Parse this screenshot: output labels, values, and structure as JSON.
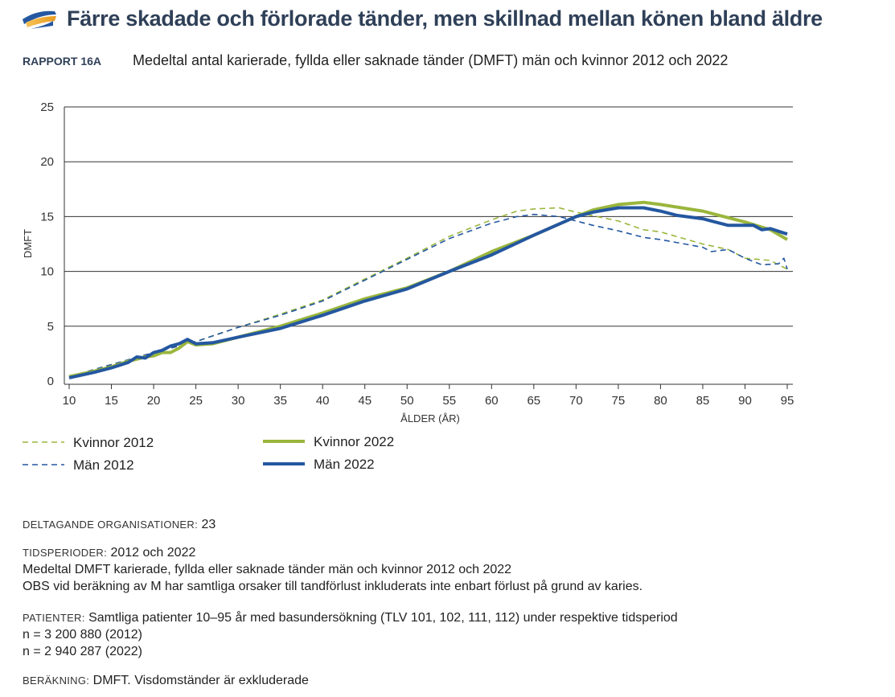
{
  "header": {
    "title": "Färre skadade och förlorade tänder, men skillnad mellan könen bland äldre",
    "report_label": "RAPPORT 16A",
    "subtitle": "Medeltal antal karierade, fyllda eller saknade tänder (DMFT) män och kvinnor 2012 och 2022"
  },
  "colors": {
    "green": "#9ab63c",
    "blue": "#2457a0",
    "title": "#2f4058"
  },
  "chart_data": {
    "type": "line",
    "xlabel": "ÅLDER (ÅR)",
    "ylabel": "DMFT",
    "xlim": [
      10,
      96
    ],
    "ylim": [
      0,
      25
    ],
    "xticks": [
      10,
      15,
      20,
      25,
      30,
      35,
      40,
      45,
      50,
      55,
      60,
      65,
      70,
      75,
      80,
      85,
      90,
      95
    ],
    "yticks": [
      0,
      5,
      10,
      15,
      20,
      25
    ],
    "grid": "horizontal",
    "legend": "bottom-left",
    "series": [
      {
        "name": "Kvinnor 2012",
        "style": "dashed",
        "color": "#9ab63c",
        "x": [
          10,
          15,
          20,
          25,
          30,
          35,
          40,
          45,
          50,
          55,
          60,
          63,
          65,
          68,
          70,
          75,
          78,
          80,
          85,
          88,
          90,
          93,
          95
        ],
        "y": [
          0.4,
          1.5,
          2.6,
          3.6,
          4.9,
          6.1,
          7.4,
          9.3,
          11.2,
          13.2,
          14.7,
          15.5,
          15.7,
          15.8,
          15.4,
          14.6,
          13.8,
          13.6,
          12.5,
          12.0,
          11.2,
          11.0,
          10.2
        ]
      },
      {
        "name": "Män 2012",
        "style": "dashed",
        "color": "#2457a0",
        "x": [
          10,
          15,
          20,
          25,
          30,
          35,
          40,
          45,
          50,
          55,
          60,
          63,
          65,
          68,
          70,
          72,
          75,
          78,
          80,
          85,
          86,
          88,
          90,
          92,
          94,
          94.6,
          95
        ],
        "y": [
          0.4,
          1.5,
          2.6,
          3.6,
          4.9,
          6.0,
          7.3,
          9.2,
          11.1,
          13.0,
          14.4,
          15.0,
          15.2,
          15.0,
          14.6,
          14.2,
          13.7,
          13.1,
          12.9,
          12.2,
          11.8,
          12.0,
          11.2,
          10.6,
          10.7,
          11.2,
          10.2
        ]
      },
      {
        "name": "Kvinnor 2022",
        "style": "solid",
        "color": "#9ab63c",
        "x": [
          10,
          13,
          15,
          17,
          19,
          20,
          21,
          22,
          23,
          24,
          25,
          27,
          30,
          35,
          40,
          45,
          50,
          55,
          60,
          65,
          70,
          72,
          75,
          78,
          80,
          85,
          88,
          90,
          93,
          95
        ],
        "y": [
          0.4,
          0.9,
          1.3,
          1.8,
          2.2,
          2.3,
          2.6,
          2.6,
          3.0,
          3.6,
          3.3,
          3.4,
          4.0,
          5.0,
          6.2,
          7.5,
          8.5,
          10.0,
          11.8,
          13.3,
          15.0,
          15.6,
          16.1,
          16.3,
          16.1,
          15.5,
          14.9,
          14.5,
          13.8,
          12.9
        ]
      },
      {
        "name": "Män 2022",
        "style": "solid",
        "color": "#2457a0",
        "x": [
          10,
          13,
          15,
          17,
          18,
          19,
          20,
          21,
          22,
          23,
          24,
          25,
          27,
          30,
          35,
          40,
          45,
          50,
          55,
          60,
          65,
          70,
          72,
          75,
          78,
          80,
          82,
          85,
          88,
          91,
          92,
          93,
          95
        ],
        "y": [
          0.3,
          0.8,
          1.2,
          1.7,
          2.2,
          2.1,
          2.6,
          2.8,
          3.2,
          3.4,
          3.8,
          3.4,
          3.5,
          4.0,
          4.8,
          6.0,
          7.3,
          8.4,
          10.0,
          11.5,
          13.3,
          15.0,
          15.4,
          15.8,
          15.8,
          15.5,
          15.1,
          14.8,
          14.2,
          14.2,
          13.8,
          13.9,
          13.4
        ]
      }
    ]
  },
  "footer": {
    "org_label": "DELTAGANDE ORGANISATIONER:",
    "org_value": "23",
    "period_label": "TIDSPERIODER:",
    "period_value": "2012 och 2022",
    "period_line2": "Medeltal DMFT karierade, fyllda eller saknade tänder män och kvinnor 2012 och 2022",
    "period_line3": "OBS vid beräkning av M har samtliga orsaker till tandförlust inkluderats inte enbart förlust på grund av karies.",
    "patients_label": "PATIENTER:",
    "patients_value": "Samtliga patienter 10–95 år med basundersökning (TLV 101, 102, 111, 112) under respektive tidsperiod",
    "n1": "n = 3 200 880 (2012)",
    "n2": "n = 2 940 287 (2022)",
    "calc_label": "BERÄKNING:",
    "calc_value": "DMFT. Visdomständer är exkluderade"
  }
}
